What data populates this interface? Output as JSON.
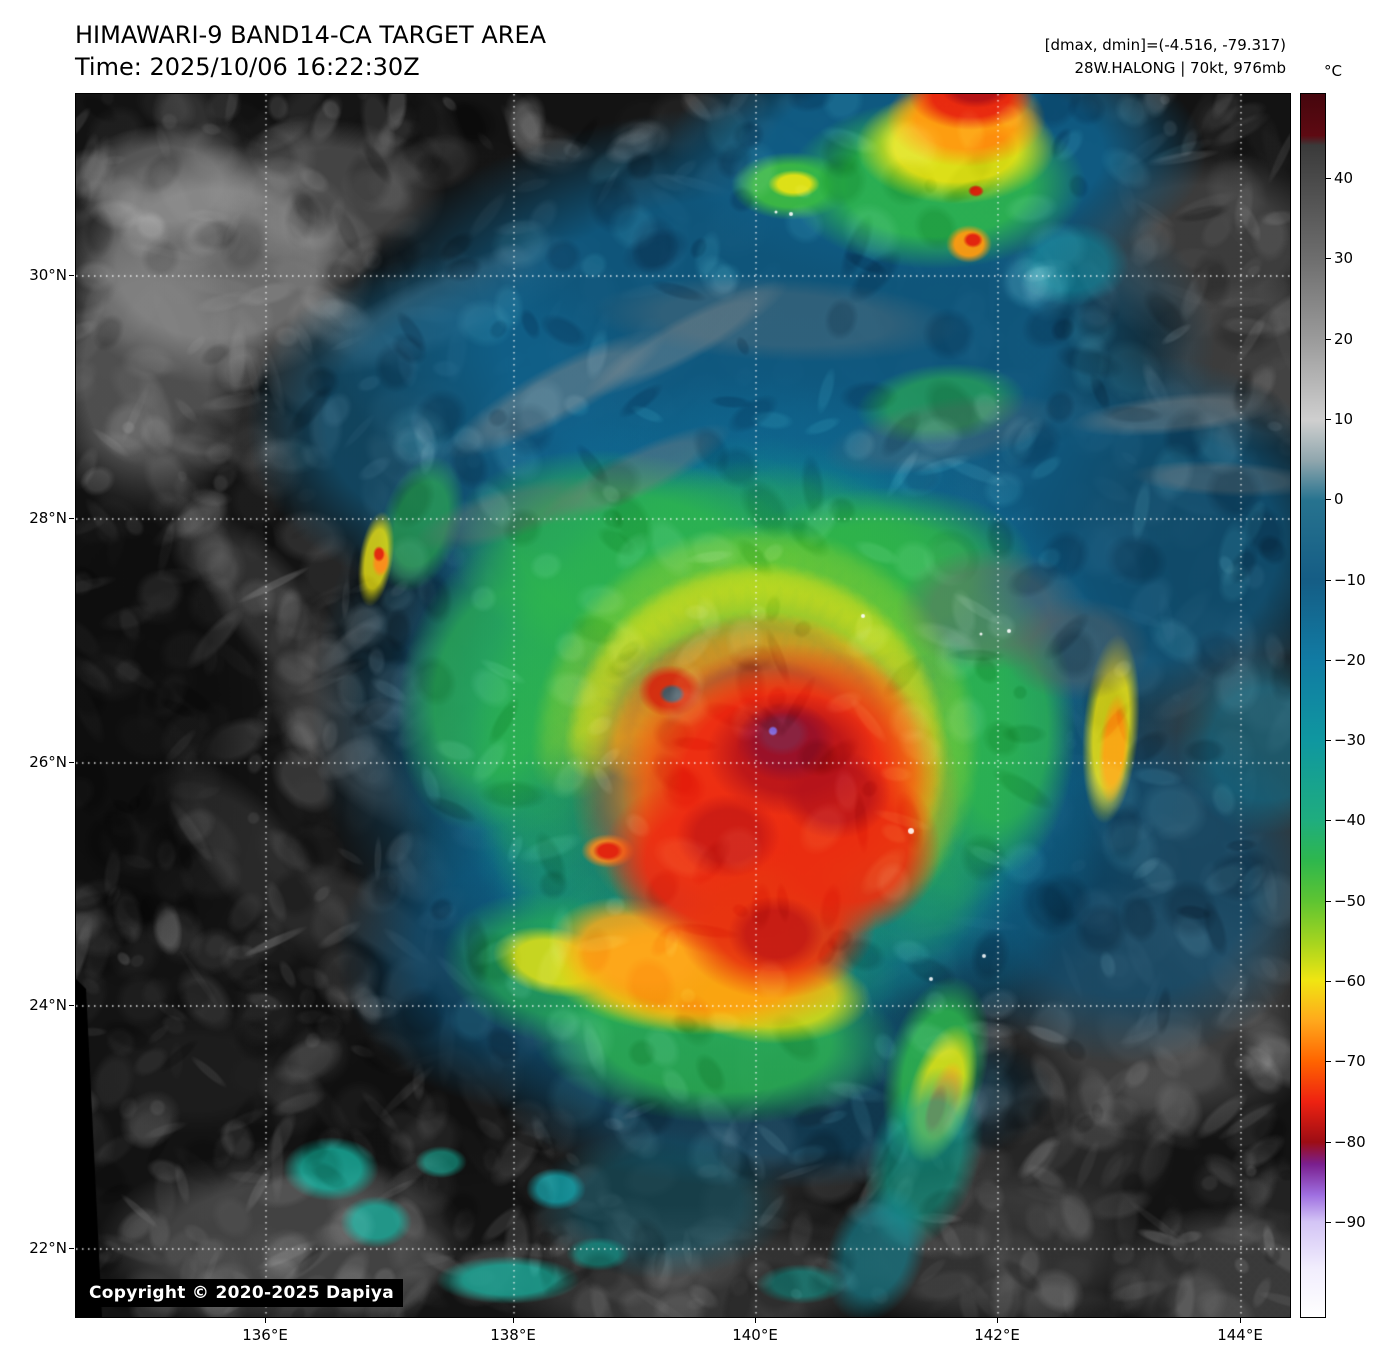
{
  "header": {
    "title": "HIMAWARI-9 BAND14-CA TARGET AREA",
    "time_label": "Time: 2025/10/06 16:22:30Z",
    "dmax_dmin": "[dmax, dmin]=(-4.516, -79.317)",
    "storm_info": "28W.HALONG | 70kt, 976mb"
  },
  "storm": {
    "satellite": "HIMAWARI-9",
    "band": "BAND14-CA",
    "designation": "28W",
    "name": "HALONG",
    "intensity": "70kt",
    "pressure": "976mb",
    "dmax": "-4.516",
    "dmin": "-79.317",
    "time": "2025/10/06 16:22:30Z"
  },
  "colorbar": {
    "unit": "°C",
    "ticks": [
      {
        "value": 40,
        "label": "40"
      },
      {
        "value": 30,
        "label": "30"
      },
      {
        "value": 20,
        "label": "20"
      },
      {
        "value": 10,
        "label": "10"
      },
      {
        "value": 0,
        "label": "0"
      },
      {
        "value": -10,
        "label": "−10"
      },
      {
        "value": -20,
        "label": "−20"
      },
      {
        "value": -30,
        "label": "−30"
      },
      {
        "value": -40,
        "label": "−40"
      },
      {
        "value": -50,
        "label": "−50"
      },
      {
        "value": -60,
        "label": "−60"
      },
      {
        "value": -70,
        "label": "−70"
      },
      {
        "value": -80,
        "label": "−80"
      },
      {
        "value": -90,
        "label": "−90"
      }
    ],
    "gradient_stops": [
      [
        0.0,
        "#45060d"
      ],
      [
        0.034,
        "#5e0a12"
      ],
      [
        0.042,
        "#3a3a3a"
      ],
      [
        0.135,
        "#6e6e6e"
      ],
      [
        0.2,
        "#9a9a9a"
      ],
      [
        0.267,
        "#cfcfcf"
      ],
      [
        0.3,
        "#8fa6ad"
      ],
      [
        0.332,
        "#27738f"
      ],
      [
        0.397,
        "#155d85"
      ],
      [
        0.463,
        "#117ba3"
      ],
      [
        0.529,
        "#0f97a0"
      ],
      [
        0.594,
        "#1fad7e"
      ],
      [
        0.627,
        "#2eb74d"
      ],
      [
        0.66,
        "#5ec432"
      ],
      [
        0.695,
        "#a8d51e"
      ],
      [
        0.725,
        "#f0e512"
      ],
      [
        0.758,
        "#ffa81c"
      ],
      [
        0.791,
        "#ff6400"
      ],
      [
        0.824,
        "#ee2211"
      ],
      [
        0.857,
        "#9d0d14"
      ],
      [
        0.875,
        "#7a1f8e"
      ],
      [
        0.9,
        "#9e6ee0"
      ],
      [
        0.922,
        "#d3c4f5"
      ],
      [
        0.96,
        "#f1edfd"
      ],
      [
        1.0,
        "#ffffff"
      ]
    ]
  },
  "axes": {
    "lat_labels": [
      "30°N",
      "28°N",
      "26°N",
      "24°N",
      "22°N"
    ],
    "lon_labels": [
      "136°E",
      "138°E",
      "140°E",
      "142°E",
      "144°E"
    ]
  },
  "footer": {
    "copyright": "Copyright © 2020-2025 Dapiya"
  }
}
